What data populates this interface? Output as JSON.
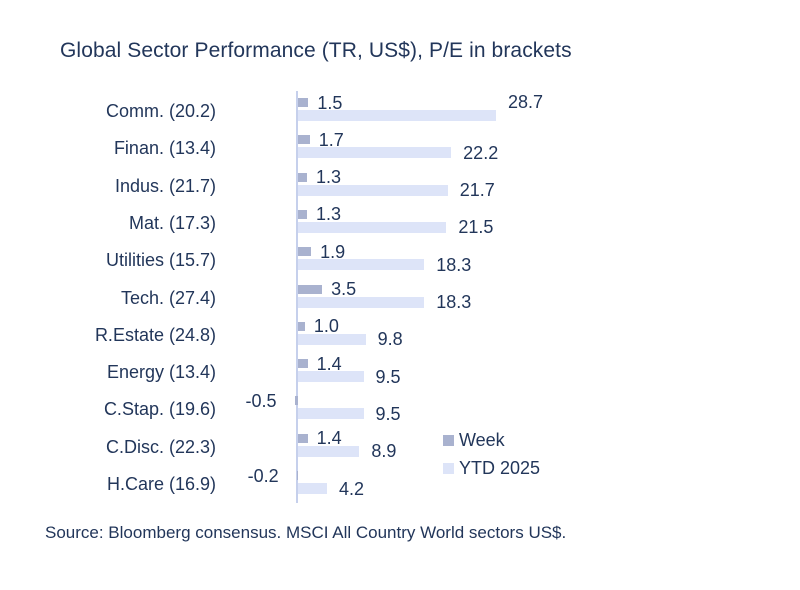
{
  "title": "Global Sector Performance (TR, US$), P/E in brackets",
  "source": "Source: Bloomberg consensus. MSCI All Country World sectors US$.",
  "colors": {
    "text": "#22365a",
    "week_bar": "#a9b2cf",
    "ytd_bar": "#dde4f8",
    "axis": "#c6d0ec",
    "background": "#ffffff"
  },
  "legend": {
    "position": "inside-bottom-right",
    "items": [
      {
        "label": "Week",
        "color": "#a9b2cf"
      },
      {
        "label": "YTD 2025",
        "color": "#dde4f8"
      }
    ]
  },
  "chart_data": {
    "type": "bar",
    "orientation": "horizontal",
    "title": "Global Sector Performance (TR, US$), P/E in brackets",
    "xlabel": "",
    "ylabel": "",
    "xlim": [
      -1,
      30
    ],
    "grid": false,
    "data_labels": true,
    "categories": [
      "Comm. (20.2)",
      "Finan. (13.4)",
      "Indus. (21.7)",
      "Mat. (17.3)",
      "Utilities (15.7)",
      "Tech. (27.4)",
      "R.Estate (24.8)",
      "Energy (13.4)",
      "C.Stap. (19.6)",
      "C.Disc. (22.3)",
      "H.Care (16.9)"
    ],
    "series": [
      {
        "name": "Week",
        "values": [
          1.5,
          1.7,
          1.3,
          1.3,
          1.9,
          3.5,
          1.0,
          1.4,
          -0.5,
          1.4,
          -0.2
        ]
      },
      {
        "name": "YTD 2025",
        "values": [
          28.7,
          22.2,
          21.7,
          21.5,
          18.3,
          18.3,
          9.8,
          9.5,
          9.5,
          8.9,
          4.2
        ]
      }
    ]
  }
}
